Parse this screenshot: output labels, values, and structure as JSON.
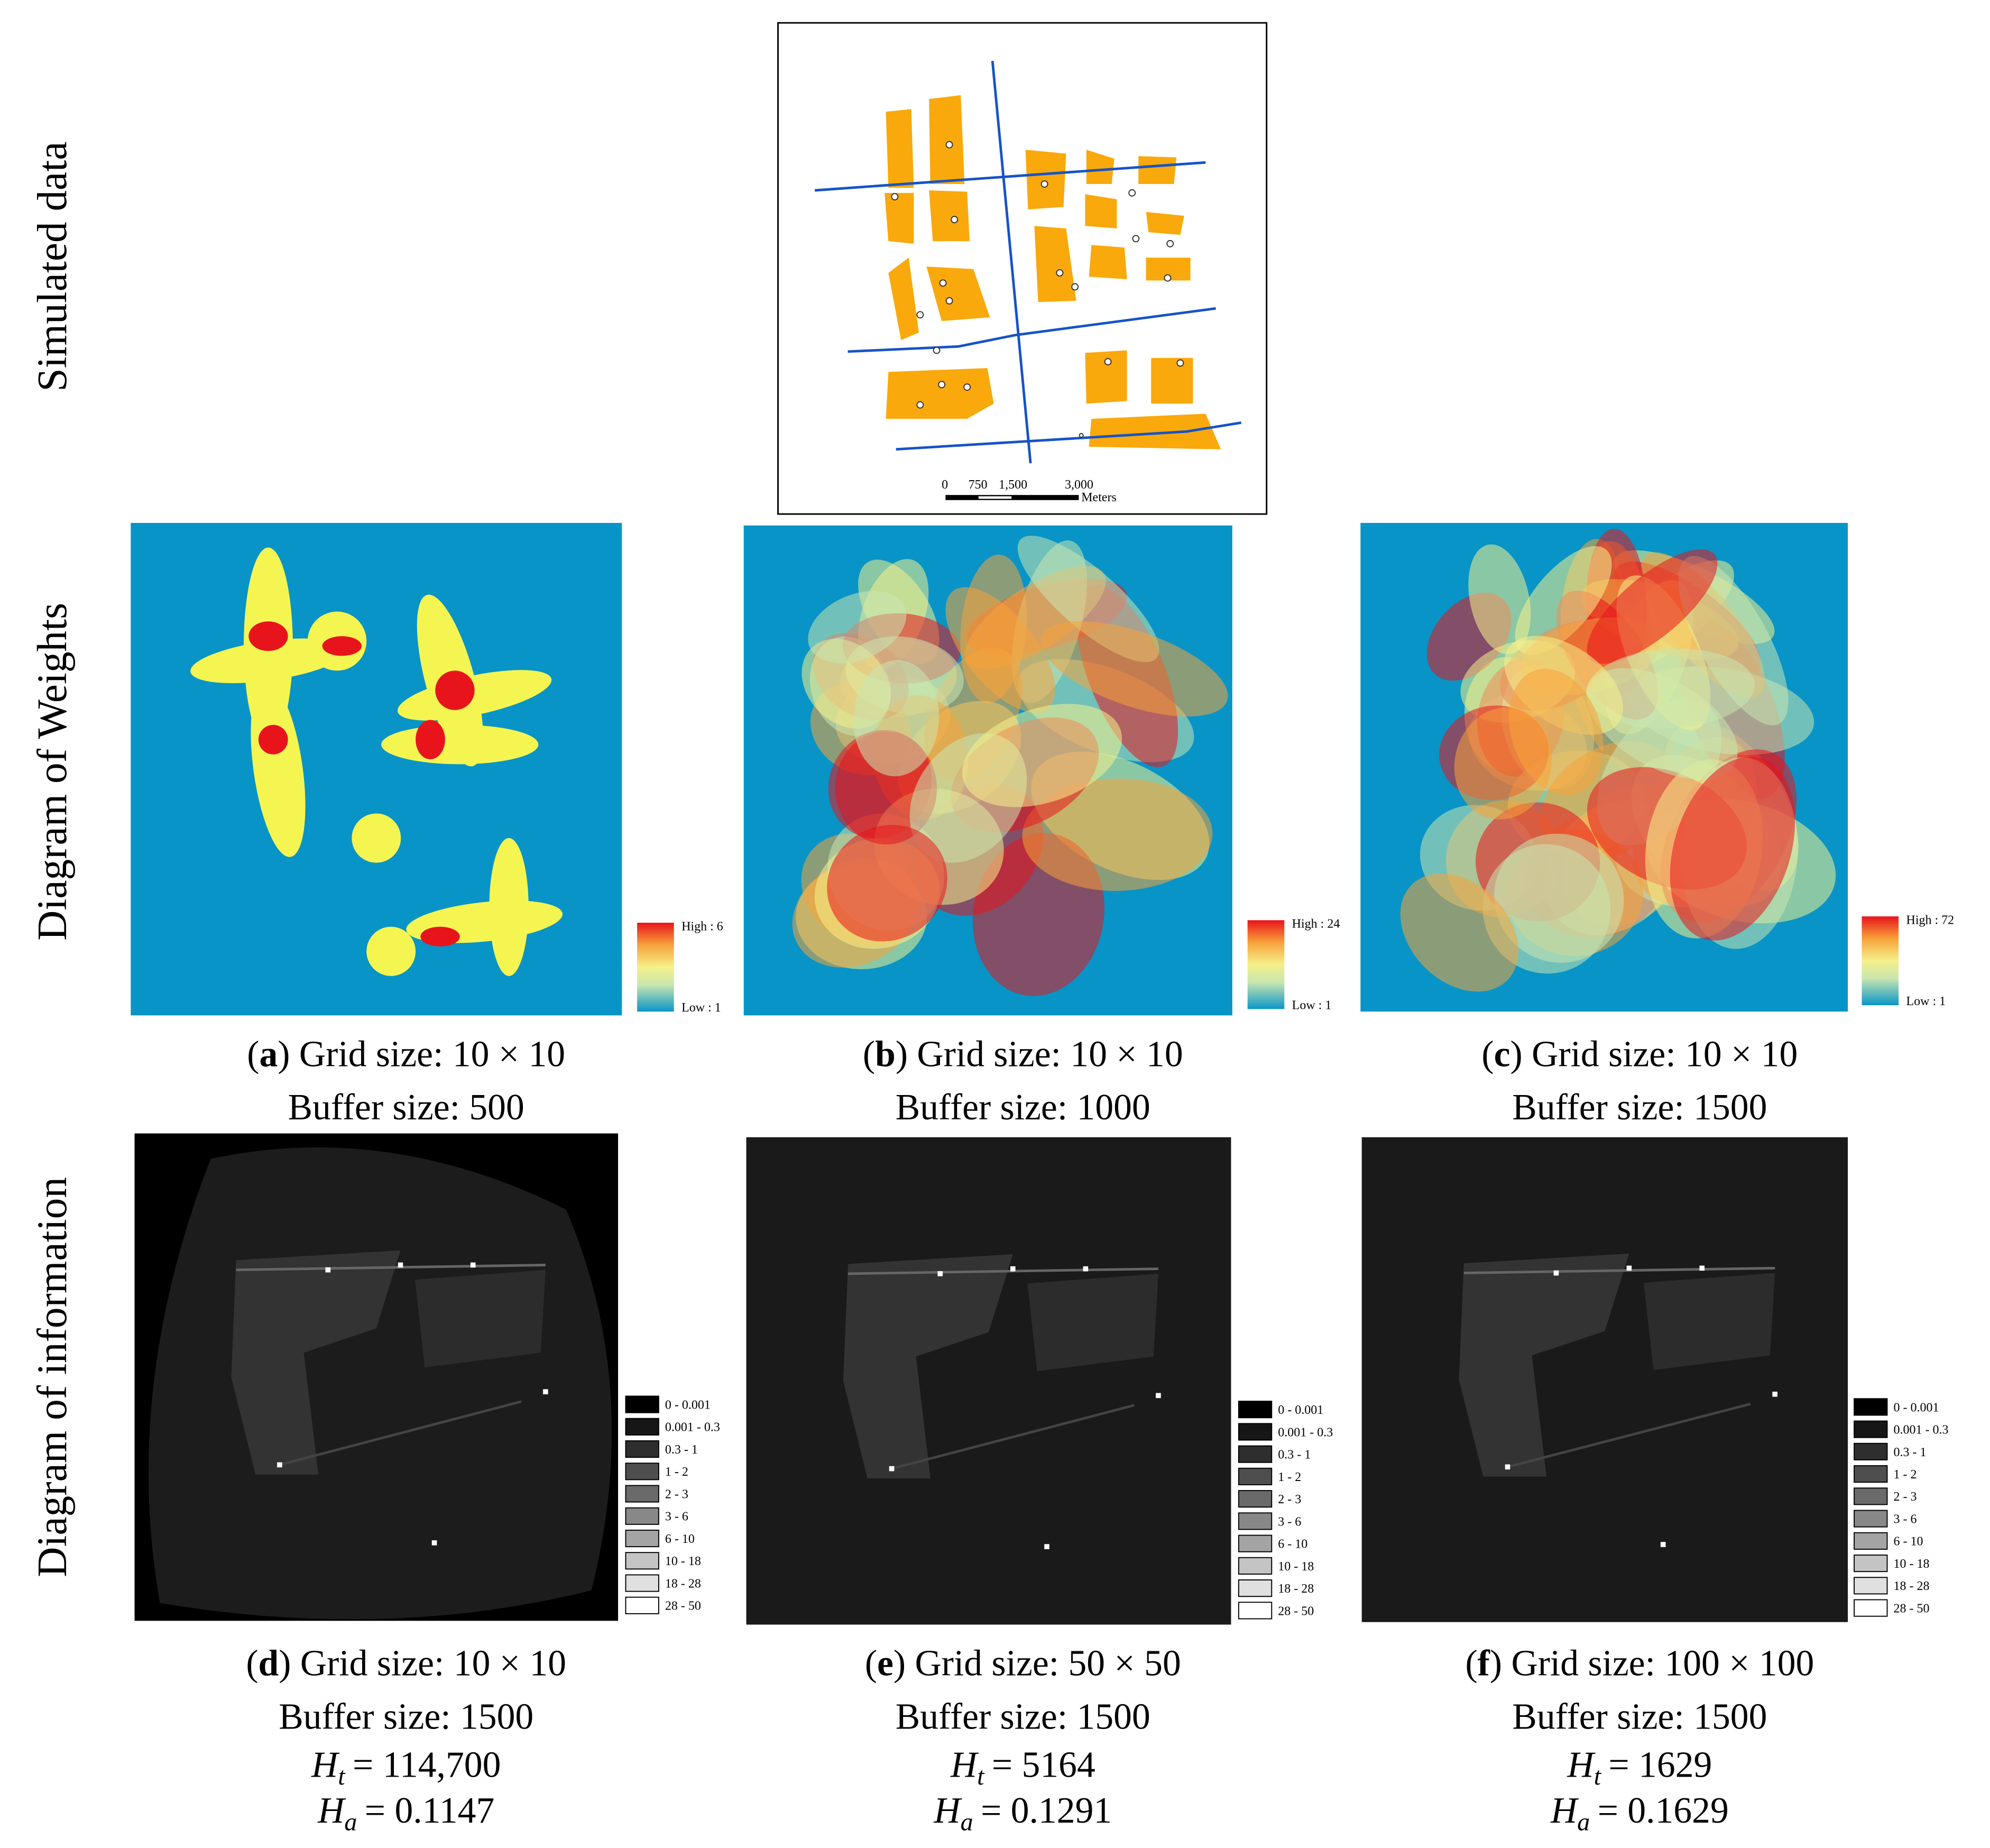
{
  "row_labels": [
    "Simulated data",
    "Diagram of Weights",
    "Diagram of information"
  ],
  "scale_bar": {
    "ticks": [
      "0",
      "750",
      "1,500",
      "3,000"
    ],
    "unit": "Meters"
  },
  "weights_panels": [
    {
      "caption": [
        "(",
        "a",
        ") Grid size: 10 × 10"
      ],
      "buffer": "Buffer size: 500",
      "legend_high": "High : 6",
      "legend_low": "Low : 1"
    },
    {
      "caption": [
        "(",
        "b",
        ") Grid size: 10 × 10"
      ],
      "buffer": "Buffer size: 1000",
      "legend_high": "High : 24",
      "legend_low": "Low : 1"
    },
    {
      "caption": [
        "(",
        "c",
        ") Grid size: 10 × 10"
      ],
      "buffer": "Buffer size: 1500",
      "legend_high": "High : 72",
      "legend_low": "Low : 1"
    }
  ],
  "info_legend": [
    "0 - 0.001",
    "0.001 - 0.3",
    "0.3 - 1",
    "1 - 2",
    "2 - 3",
    "3 - 6",
    "6 - 10",
    "10 - 18",
    "18 - 28",
    "28 - 50"
  ],
  "info_panels": [
    {
      "caption": [
        "(",
        "d",
        ") Grid size: 10 × 10"
      ],
      "buffer": "Buffer size: 1500",
      "ht": [
        "H",
        "t",
        "= 114,700"
      ],
      "ha": [
        "H",
        "a",
        "= 0.1147"
      ]
    },
    {
      "caption": [
        "(",
        "e",
        ") Grid size: 50 × 50"
      ],
      "buffer": "Buffer size: 1500",
      "ht": [
        "H",
        "t",
        "= 5164"
      ],
      "ha": [
        "H",
        "a",
        "= 0.1291"
      ]
    },
    {
      "caption": [
        "(",
        "f",
        ") Grid size: 100 × 100"
      ],
      "buffer": "Buffer size: 1500",
      "ht": [
        "H",
        "t",
        "= 1629"
      ],
      "ha": [
        "H",
        "a",
        "= 0.1629"
      ]
    }
  ]
}
